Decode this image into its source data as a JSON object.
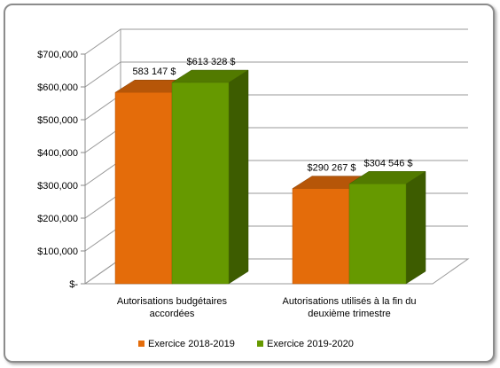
{
  "chart_data": {
    "type": "bar",
    "three_d": true,
    "categories": [
      [
        "Autorisations budgétaires",
        "accordées"
      ],
      [
        "Autorisations utilisés à la fin du",
        "deuxième trimestre"
      ]
    ],
    "series": [
      {
        "name": "Exercice 2018-2019",
        "color": "#e46c0a",
        "values": [
          583147,
          290267
        ],
        "labels": [
          "583 147 $",
          "$290 267 $"
        ]
      },
      {
        "name": "Exercice 2019-2020",
        "color": "#669900",
        "values": [
          613328,
          304546
        ],
        "labels": [
          "$613 328 $",
          "$304 546 $"
        ]
      }
    ],
    "y_ticks": [
      {
        "value": 0,
        "label": "$-"
      },
      {
        "value": 100000,
        "label": "$100,000"
      },
      {
        "value": 200000,
        "label": "$200,000"
      },
      {
        "value": 300000,
        "label": "$300,000"
      },
      {
        "value": 400000,
        "label": "$400,000"
      },
      {
        "value": 500000,
        "label": "$500,000"
      },
      {
        "value": 600000,
        "label": "$600,000"
      },
      {
        "value": 700000,
        "label": "$700,000"
      }
    ],
    "ylim": [
      0,
      700000
    ],
    "grid": true,
    "legend_position": "bottom"
  }
}
